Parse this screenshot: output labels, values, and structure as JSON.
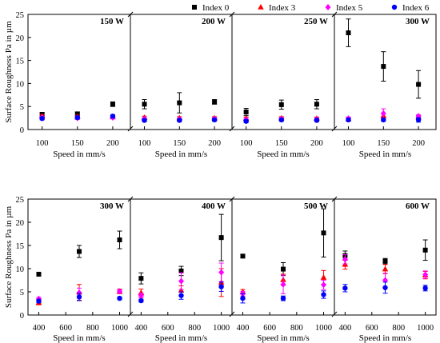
{
  "legend": [
    {
      "name": "Index 0",
      "color": "#000000",
      "marker": "square"
    },
    {
      "name": "Index 3",
      "color": "#ff0000",
      "marker": "triangle"
    },
    {
      "name": "Index 5",
      "color": "#ff00ff",
      "marker": "diamond"
    },
    {
      "name": "Index 6",
      "color": "#0000ff",
      "marker": "circle"
    }
  ],
  "chart_data": [
    {
      "type": "scatter",
      "row": "top",
      "ylabel": "Surface Roughness Pa in µm",
      "xlabel": "Speed in mm/s",
      "ylim": [
        0,
        25
      ],
      "yticks": [
        0,
        5,
        10,
        15,
        20,
        25
      ],
      "grid": false,
      "legend_placement": "top-right",
      "panels": [
        {
          "title": "150 W",
          "xlim": [
            80,
            225
          ],
          "xticks": [
            100,
            150,
            200
          ],
          "x": [
            100,
            150,
            200
          ],
          "series": [
            {
              "name": "Index 0",
              "values": [
                3.3,
                3.4,
                5.5
              ],
              "errors": [
                0.4,
                0.4,
                0.5
              ]
            },
            {
              "name": "Index 3",
              "values": [
                2.9,
                2.8,
                2.8
              ],
              "errors": [
                0.3,
                0.3,
                0.3
              ]
            },
            {
              "name": "Index 5",
              "values": [
                2.6,
                2.5,
                2.6
              ],
              "errors": [
                0.3,
                0.3,
                0.3
              ]
            },
            {
              "name": "Index 6",
              "values": [
                2.4,
                2.6,
                2.9
              ],
              "errors": [
                0.3,
                0.3,
                0.3
              ]
            }
          ]
        },
        {
          "title": "200 W",
          "xlim": [
            80,
            225
          ],
          "xticks": [
            100,
            150,
            200
          ],
          "x": [
            100,
            150,
            200
          ],
          "series": [
            {
              "name": "Index 0",
              "values": [
                5.5,
                5.8,
                6.0
              ],
              "errors": [
                1.0,
                2.2,
                0.5
              ]
            },
            {
              "name": "Index 3",
              "values": [
                2.6,
                2.5,
                2.5
              ],
              "errors": [
                0.3,
                0.3,
                0.3
              ]
            },
            {
              "name": "Index 5",
              "values": [
                2.3,
                2.2,
                2.3
              ],
              "errors": [
                0.3,
                0.3,
                0.3
              ]
            },
            {
              "name": "Index 6",
              "values": [
                2.0,
                2.0,
                2.1
              ],
              "errors": [
                0.3,
                0.3,
                0.3
              ]
            }
          ]
        },
        {
          "title": "250 W",
          "xlim": [
            80,
            225
          ],
          "xticks": [
            100,
            150,
            200
          ],
          "x": [
            100,
            150,
            200
          ],
          "series": [
            {
              "name": "Index 0",
              "values": [
                3.8,
                5.4,
                5.5
              ],
              "errors": [
                0.8,
                1.0,
                1.0
              ]
            },
            {
              "name": "Index 3",
              "values": [
                2.4,
                2.5,
                2.4
              ],
              "errors": [
                0.3,
                0.3,
                0.3
              ]
            },
            {
              "name": "Index 5",
              "values": [
                2.1,
                2.3,
                2.2
              ],
              "errors": [
                0.3,
                0.3,
                0.3
              ]
            },
            {
              "name": "Index 6",
              "values": [
                1.8,
                2.1,
                2.0
              ],
              "errors": [
                0.3,
                0.3,
                0.3
              ]
            }
          ]
        },
        {
          "title": "300 W",
          "xlim": [
            80,
            225
          ],
          "xticks": [
            100,
            150,
            200
          ],
          "x": [
            100,
            150,
            200
          ],
          "series": [
            {
              "name": "Index 0",
              "values": [
                21.0,
                13.7,
                9.8
              ],
              "errors": [
                3.0,
                3.2,
                3.0
              ]
            },
            {
              "name": "Index 3",
              "values": [
                2.3,
                3.0,
                2.7
              ],
              "errors": [
                0.3,
                0.5,
                0.3
              ]
            },
            {
              "name": "Index 5",
              "values": [
                2.4,
                3.5,
                2.9
              ],
              "errors": [
                0.3,
                1.0,
                0.3
              ]
            },
            {
              "name": "Index 6",
              "values": [
                2.1,
                2.1,
                2.1
              ],
              "errors": [
                0.3,
                0.3,
                0.5
              ]
            }
          ]
        }
      ]
    },
    {
      "type": "scatter",
      "row": "bottom",
      "ylabel": "Surface Roughness Pa in µm",
      "xlabel": "Speed in mm/s",
      "ylim": [
        0,
        25
      ],
      "yticks": [
        0,
        5,
        10,
        15,
        20,
        25
      ],
      "grid": false,
      "panels": [
        {
          "title": "300 W",
          "xlim": [
            320,
            1080
          ],
          "xticks": [
            400,
            600,
            800,
            1000
          ],
          "x": [
            400,
            700,
            1000
          ],
          "series": [
            {
              "name": "Index 0",
              "values": [
                8.8,
                13.7,
                16.2
              ],
              "errors": [
                0.3,
                1.3,
                1.9
              ]
            },
            {
              "name": "Index 3",
              "values": [
                2.7,
                4.9,
                5.1
              ],
              "errors": [
                0.5,
                1.7,
                0.5
              ]
            },
            {
              "name": "Index 5",
              "values": [
                3.5,
                4.8,
                5.1
              ],
              "errors": [
                0.3,
                1.0,
                0.3
              ]
            },
            {
              "name": "Index 6",
              "values": [
                3.0,
                3.9,
                3.6
              ],
              "errors": [
                0.3,
                0.8,
                0.3
              ]
            }
          ]
        },
        {
          "title": "400 W",
          "xlim": [
            320,
            1080
          ],
          "xticks": [
            400,
            600,
            800,
            1000
          ],
          "x": [
            400,
            700,
            1000
          ],
          "series": [
            {
              "name": "Index 0",
              "values": [
                7.9,
                9.5,
                16.7
              ],
              "errors": [
                1.2,
                1.0,
                5.0
              ]
            },
            {
              "name": "Index 3",
              "values": [
                4.8,
                5.3,
                7.0
              ],
              "errors": [
                0.8,
                1.0,
                3.0
              ]
            },
            {
              "name": "Index 5",
              "values": [
                4.2,
                7.3,
                9.2
              ],
              "errors": [
                0.5,
                1.8,
                2.0
              ]
            },
            {
              "name": "Index 6",
              "values": [
                3.1,
                4.2,
                6.1
              ],
              "errors": [
                0.3,
                0.8,
                1.0
              ]
            }
          ]
        },
        {
          "title": "500 W",
          "xlim": [
            320,
            1080
          ],
          "xticks": [
            400,
            600,
            800,
            1000
          ],
          "x": [
            400,
            700,
            1000
          ],
          "series": [
            {
              "name": "Index 0",
              "values": [
                12.7,
                9.9,
                17.7
              ],
              "errors": [
                0.3,
                1.4,
                5.2
              ]
            },
            {
              "name": "Index 3",
              "values": [
                5.0,
                7.6,
                8.1
              ],
              "errors": [
                0.5,
                1.2,
                1.5
              ]
            },
            {
              "name": "Index 5",
              "values": [
                4.6,
                6.6,
                6.5
              ],
              "errors": [
                0.5,
                2.0,
                1.0
              ]
            },
            {
              "name": "Index 6",
              "values": [
                3.6,
                3.6,
                4.4
              ],
              "errors": [
                1.0,
                0.5,
                0.8
              ]
            }
          ]
        },
        {
          "title": "600 W",
          "xlim": [
            320,
            1080
          ],
          "xticks": [
            400,
            600,
            800,
            1000
          ],
          "x": [
            400,
            700,
            1000
          ],
          "series": [
            {
              "name": "Index 0",
              "values": [
                12.8,
                11.6,
                14.0
              ],
              "errors": [
                1.0,
                0.6,
                2.2
              ]
            },
            {
              "name": "Index 3",
              "values": [
                10.9,
                9.9,
                8.6
              ],
              "errors": [
                1.0,
                1.0,
                0.8
              ]
            },
            {
              "name": "Index 5",
              "values": [
                12.0,
                7.5,
                8.7
              ],
              "errors": [
                1.0,
                1.5,
                0.8
              ]
            },
            {
              "name": "Index 6",
              "values": [
                5.8,
                5.9,
                5.8
              ],
              "errors": [
                0.8,
                1.2,
                0.6
              ]
            }
          ]
        }
      ]
    }
  ]
}
